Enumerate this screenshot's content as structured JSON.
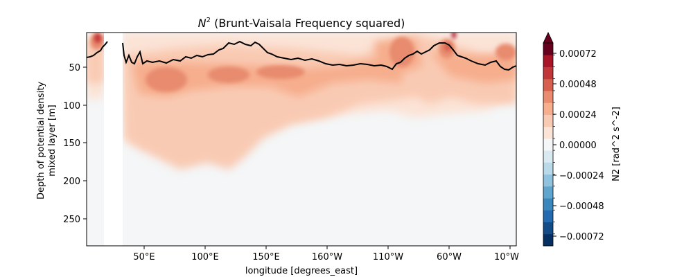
{
  "chart_data": {
    "type": "heatmap",
    "title_symbol": "N",
    "title_superscript": "2",
    "title_rest": " (Brunt-Vaisala Frequency squared)",
    "xlabel": "longitude [degrees_east]",
    "ylabel_line1": "Depth of potential density",
    "ylabel_line2": "mixed layer [m]",
    "colorbar_label": "N2 [rad^2 s^-2]",
    "x_ticks": [
      "50°E",
      "100°E",
      "150°E",
      "160°W",
      "110°W",
      "60°W",
      "10°W"
    ],
    "y_ticks": [
      "50",
      "100",
      "150",
      "200",
      "250"
    ],
    "y_range": [
      0,
      285
    ],
    "y_inverted": true,
    "colorbar_ticks": [
      "0.00072",
      "0.00048",
      "0.00024",
      "0.00000",
      "−0.00024",
      "−0.00048",
      "−0.00072"
    ],
    "colorbar_range": [
      -0.00078,
      0.00078
    ],
    "colorbar_extend": "max",
    "colormap": "RdBu_r",
    "colorbar_colors": [
      "#053061",
      "#134c87",
      "#246aae",
      "#3a87bd",
      "#5fa5cd",
      "#8fc2dd",
      "#b9d9e9",
      "#d9e9f1",
      "#f4f6f7",
      "#fbe3d6",
      "#f9cab3",
      "#f6ae8d",
      "#e88b6e",
      "#d6604d",
      "#c13639",
      "#a81529",
      "#67001f"
    ],
    "mixed_layer_depth_series": {
      "name": "",
      "color": "#000000",
      "x": [
        "50°E",
        "75°E",
        "100°E",
        "125°E",
        "150°E",
        "175°E",
        "160°W",
        "135°W",
        "110°W",
        "85°W",
        "60°W",
        "35°W",
        "10°W"
      ],
      "values": [
        44,
        40,
        38,
        32,
        18,
        36,
        46,
        46,
        50,
        28,
        20,
        42,
        48
      ]
    }
  }
}
